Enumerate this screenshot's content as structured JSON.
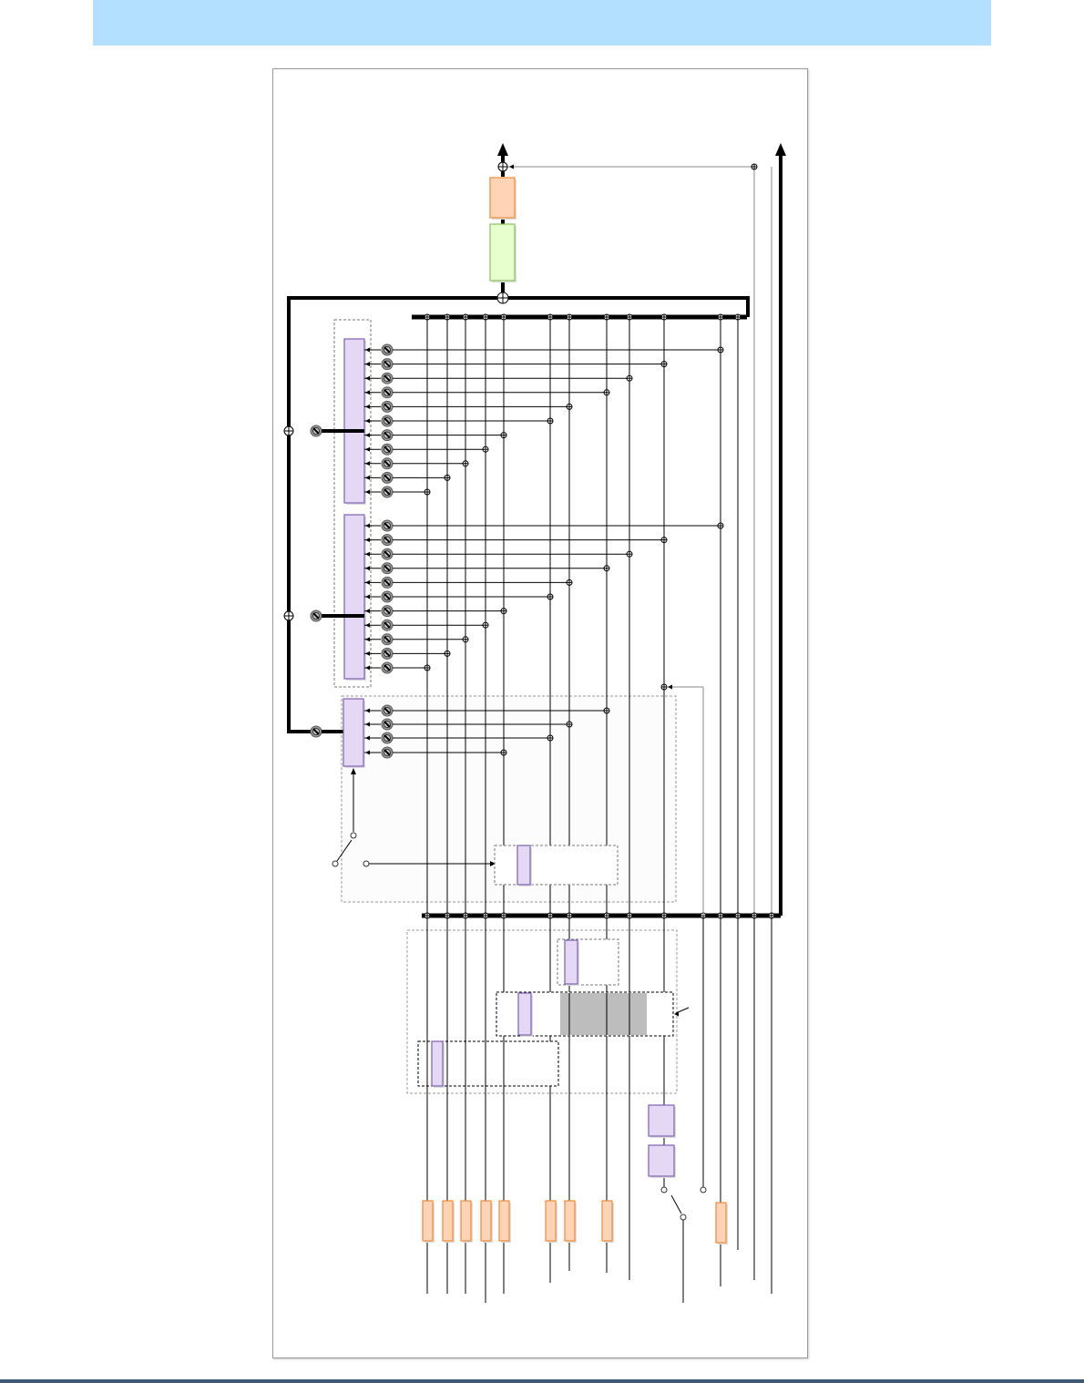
{
  "header": {
    "color": "#b3e0ff"
  },
  "footer": {
    "color": "#3e5a78"
  },
  "diagram": {
    "colors": {
      "line": "#000000",
      "thin_line_grey": "#888888",
      "purple_block": "#e4d8f5",
      "purple_border": "#8060b0",
      "orange_block": "#ffd3b5",
      "orange_border": "#f08a3a",
      "green_block": "#e6ffcc",
      "green_border": "#8cc060",
      "shaded_region": "#bdbdbd",
      "dashed_border": "#777777"
    },
    "icons": [
      "summing-junction-icon",
      "knob-icon",
      "arrowhead-icon",
      "switch-icon",
      "terminal-circle-icon"
    ]
  }
}
